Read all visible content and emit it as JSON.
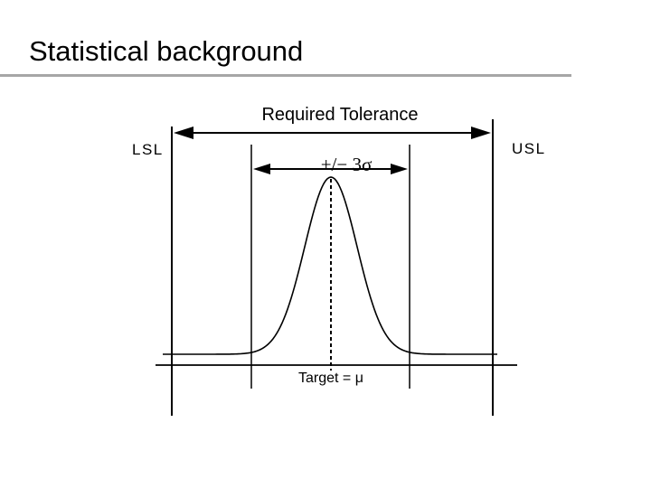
{
  "slide": {
    "title": "Statistical background"
  },
  "diagram": {
    "required_tolerance_label": "Required Tolerance",
    "lsl_label": "LSL",
    "usl_label": "USL",
    "sigma_band_label": "+/− 3σ",
    "target_label": "Target = μ"
  }
}
